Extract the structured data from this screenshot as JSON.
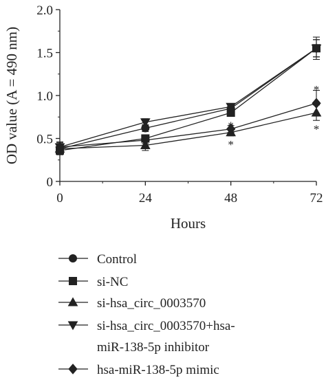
{
  "chart_data": {
    "type": "line",
    "title": "",
    "xlabel": "Hours",
    "ylabel": "OD value (A = 490 nm)",
    "x": [
      0,
      24,
      48,
      72
    ],
    "x_ticks": [
      "0",
      "24",
      "48",
      "72"
    ],
    "y_ticks": [
      "0",
      "0.5",
      "1.0",
      "1.5",
      "2.0"
    ],
    "xlim": [
      0,
      72
    ],
    "ylim": [
      0,
      2.0
    ],
    "grid": false,
    "legend_position": "bottom",
    "series": [
      {
        "name": "Control",
        "marker": "circle",
        "values": [
          0.38,
          0.62,
          0.85,
          1.55
        ],
        "errors": [
          0.05,
          0.04,
          0.03,
          0.1
        ]
      },
      {
        "name": "si-NC",
        "marker": "square",
        "values": [
          0.36,
          0.5,
          0.8,
          1.55
        ],
        "errors": [
          0.05,
          0.04,
          0.04,
          0.13
        ]
      },
      {
        "name": "si-hsa_circ_0003570",
        "marker": "triangle-up",
        "values": [
          0.38,
          0.42,
          0.57,
          0.8
        ],
        "errors": [
          0.05,
          0.06,
          0.04,
          0.09
        ]
      },
      {
        "name": "si-hsa_circ_0003570+hsa-miR-138-5p inhibitor",
        "marker": "triangle-down",
        "values": [
          0.4,
          0.69,
          0.87,
          1.55
        ],
        "errors": [
          0.06,
          0.04,
          0.03,
          0.1
        ]
      },
      {
        "name": "hsa-miR-138-5p mimic",
        "marker": "diamond",
        "values": [
          0.4,
          0.48,
          0.61,
          0.91
        ],
        "errors": [
          0.05,
          0.04,
          0.04,
          0.15
        ]
      }
    ],
    "annotations": [
      {
        "text": "*",
        "x": 48,
        "y": 0.45
      },
      {
        "text": "*",
        "x": 48,
        "y": 0.67
      },
      {
        "text": "*",
        "x": 72,
        "y": 0.63
      },
      {
        "text": "*",
        "x": 72,
        "y": 1.09
      }
    ]
  },
  "legend": {
    "items": [
      {
        "lines": [
          "Control"
        ]
      },
      {
        "lines": [
          "si-NC"
        ]
      },
      {
        "lines": [
          "si-hsa_circ_0003570"
        ]
      },
      {
        "lines": [
          "si-hsa_circ_0003570+hsa-",
          "miR-138-5p inhibitor"
        ]
      },
      {
        "lines": [
          "hsa-miR-138-5p mimic"
        ]
      }
    ]
  },
  "colors": {
    "ink": "#222222",
    "background": "#ffffff"
  }
}
